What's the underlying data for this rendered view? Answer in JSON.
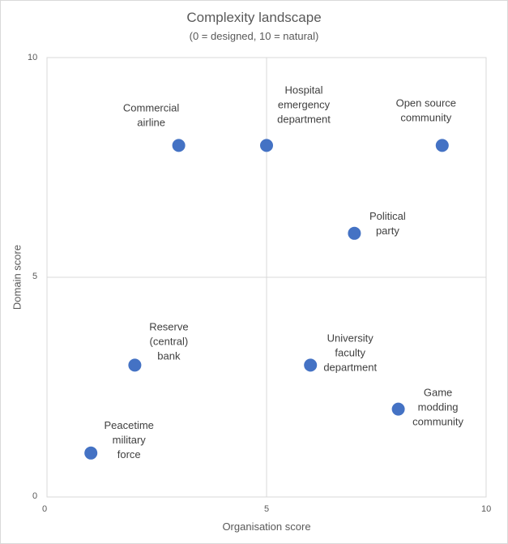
{
  "chart_data": {
    "type": "scatter",
    "title": "Complexity landscape",
    "subtitle": "(0 = designed, 10 = natural)",
    "xlabel": "Organisation score",
    "ylabel": "Domain score",
    "xlim": [
      0,
      10
    ],
    "ylim": [
      0,
      10
    ],
    "xticks": [
      "0",
      "5",
      "10"
    ],
    "yticks": [
      "0",
      "5",
      "10"
    ],
    "marker_color": "#4472c4",
    "points": [
      {
        "name": "Commercial airline",
        "lines": [
          "Commercial",
          "airline"
        ],
        "x": 3,
        "y": 8
      },
      {
        "name": "Hospital emergency department",
        "lines": [
          "Hospital",
          "emergency",
          "department"
        ],
        "x": 5,
        "y": 8
      },
      {
        "name": "Open source community",
        "lines": [
          "Open source",
          "community"
        ],
        "x": 9,
        "y": 8
      },
      {
        "name": "Political party",
        "lines": [
          "Political",
          "party"
        ],
        "x": 7,
        "y": 6
      },
      {
        "name": "Reserve (central) bank",
        "lines": [
          "Reserve",
          "(central)",
          "bank"
        ],
        "x": 2,
        "y": 3
      },
      {
        "name": "University faculty department",
        "lines": [
          "University",
          "faculty",
          "department"
        ],
        "x": 6,
        "y": 3
      },
      {
        "name": "Game modding community",
        "lines": [
          "Game",
          "modding",
          "community"
        ],
        "x": 8,
        "y": 2
      },
      {
        "name": "Peacetime military force",
        "lines": [
          "Peacetime",
          "military",
          "force"
        ],
        "x": 1,
        "y": 1
      }
    ]
  }
}
